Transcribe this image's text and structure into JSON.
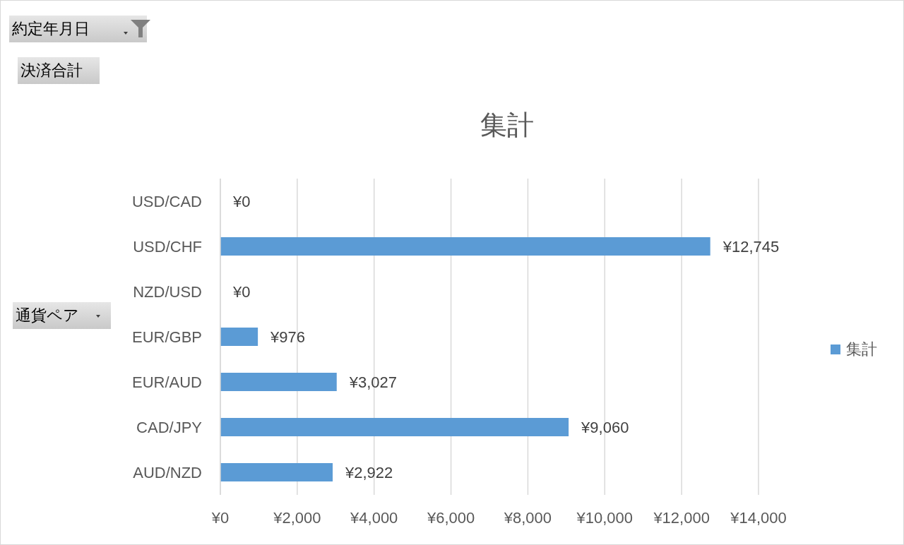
{
  "chart_data": {
    "type": "bar",
    "orientation": "horizontal",
    "title": "集計",
    "ylabel": "通貨ペア",
    "annotations": [
      "約定年月日",
      "決済合計"
    ],
    "categories": [
      "USD/CAD",
      "USD/CHF",
      "NZD/USD",
      "EUR/GBP",
      "EUR/AUD",
      "CAD/JPY",
      "AUD/NZD"
    ],
    "series": [
      {
        "name": "集計",
        "color": "#5b9bd5",
        "values": [
          0,
          12745,
          0,
          976,
          3027,
          9060,
          2922
        ],
        "value_labels": [
          "¥0",
          "¥12,745",
          "¥0",
          "¥976",
          "¥3,027",
          "¥9,060",
          "¥2,922"
        ]
      }
    ],
    "xlim": [
      0,
      14000
    ],
    "xticks": [
      {
        "value": 0,
        "label": "¥0"
      },
      {
        "value": 2000,
        "label": "¥2,000"
      },
      {
        "value": 4000,
        "label": "¥4,000"
      },
      {
        "value": 6000,
        "label": "¥6,000"
      },
      {
        "value": 8000,
        "label": "¥8,000"
      },
      {
        "value": 10000,
        "label": "¥10,000"
      },
      {
        "value": 12000,
        "label": "¥12,000"
      },
      {
        "value": 14000,
        "label": "¥14,000"
      }
    ],
    "grid": "x",
    "legend": "right"
  }
}
